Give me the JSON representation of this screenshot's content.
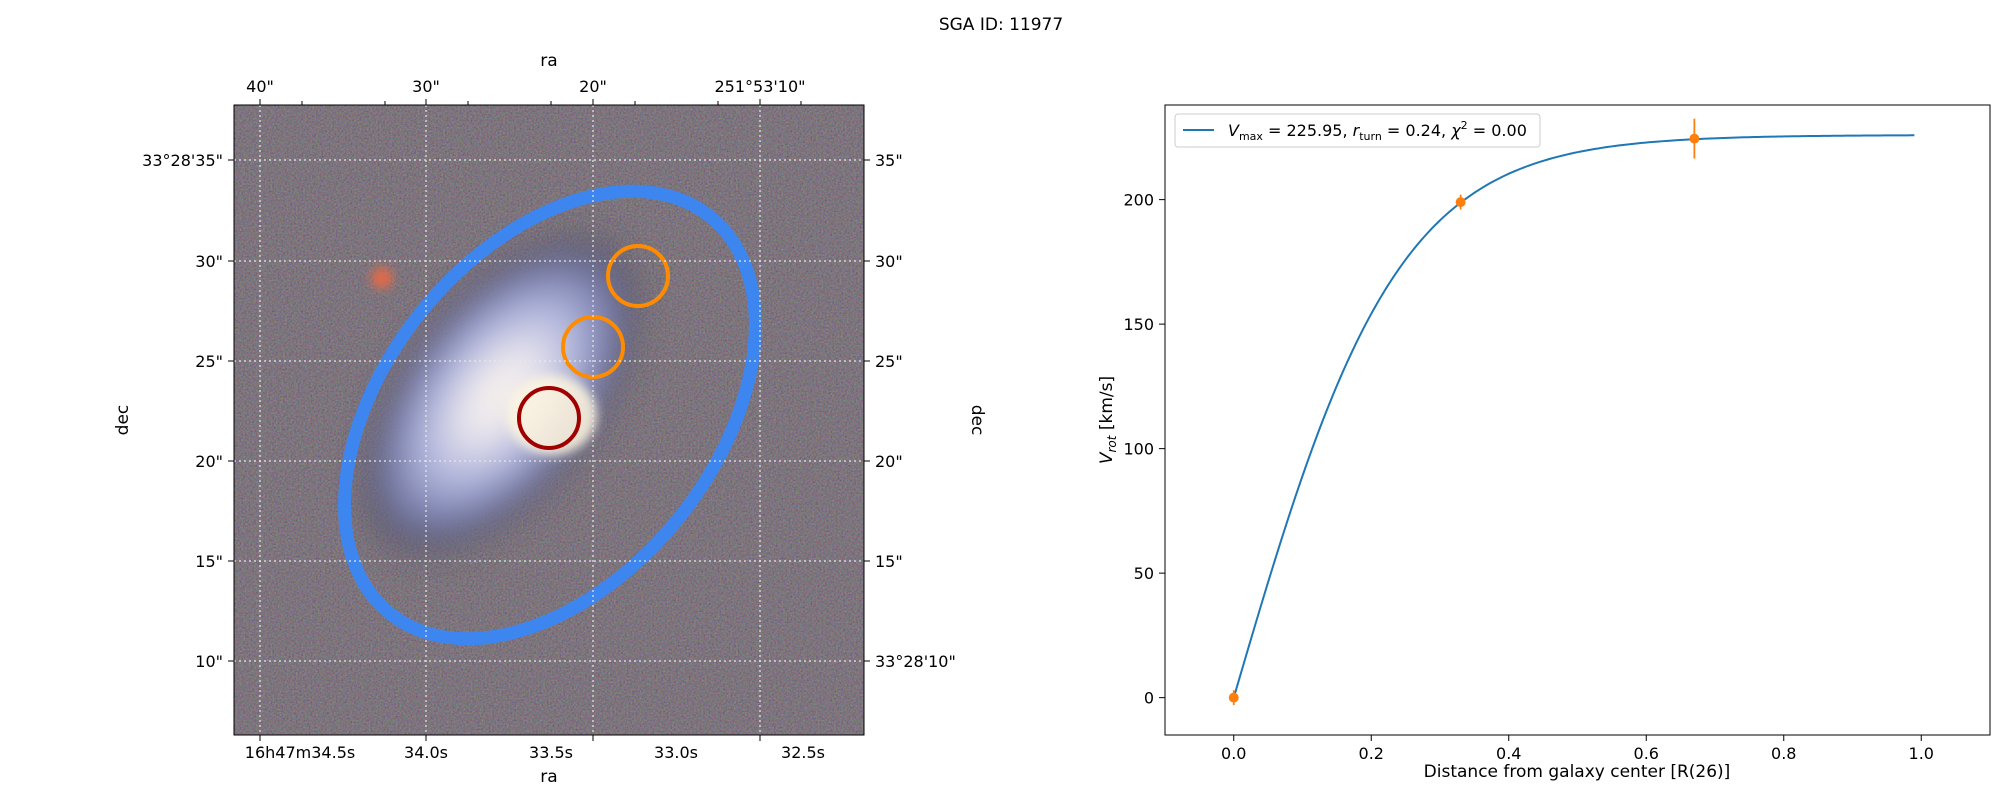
{
  "title": "SGA ID: 11977",
  "sky_image": {
    "top_axis_label": "ra",
    "bottom_axis_label": "ra",
    "left_axis_label": "dec",
    "right_axis_label": "dec",
    "top_ticks": [
      "40\"",
      "30\"",
      "20\"",
      "251°53'10\""
    ],
    "bottom_ticks": [
      "16h47m34.5s",
      "34.0s",
      "33.5s",
      "33.0s",
      "32.5s"
    ],
    "left_ticks": [
      "33°28'35\"",
      "30\"",
      "25\"",
      "20\"",
      "15\"",
      "10\""
    ],
    "right_ticks": [
      "35\"",
      "30\"",
      "25\"",
      "20\"",
      "15\"",
      "33°28'10\""
    ],
    "ellipse_color": "#3d86f0",
    "aperture_colors": [
      "#ff8c00",
      "#ff8c00",
      "#a00000"
    ]
  },
  "chart_data": {
    "type": "line",
    "xlabel": "Distance from galaxy center [R(26)]",
    "ylabel": "V_rot [km/s]",
    "xlim": [
      -0.1,
      1.1
    ],
    "ylim": [
      -15,
      238
    ],
    "xticks": [
      0.0,
      0.2,
      0.4,
      0.6,
      0.8,
      1.0
    ],
    "yticks": [
      0,
      50,
      100,
      150,
      200
    ],
    "grid": false,
    "legend_position": "upper-left",
    "series": [
      {
        "name": "V_max = 225.95, r_turn = 0.24, χ² = 0.00",
        "kind": "model-curve",
        "color": "#1f77b4",
        "vmax": 225.95,
        "rturn": 0.24,
        "x_range": [
          0.0,
          0.99
        ]
      },
      {
        "kind": "data-errorbar",
        "color": "#ff7f0e",
        "x": [
          0.0,
          0.33,
          0.67
        ],
        "y": [
          0,
          199,
          224.5
        ],
        "yerr": [
          3,
          3,
          8
        ]
      }
    ],
    "legend": {
      "vmax": "225.95",
      "rturn": "0.24",
      "chi2": "0.00"
    }
  }
}
